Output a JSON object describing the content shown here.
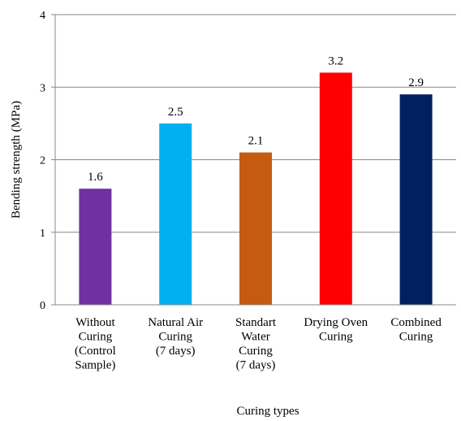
{
  "chart_data": {
    "type": "bar",
    "title": "",
    "xlabel": "Curing types",
    "ylabel": "Bending strength (MPa)",
    "ylim": [
      0,
      4
    ],
    "yticks": [
      0,
      1,
      2,
      3,
      4
    ],
    "grid": true,
    "legend": "none",
    "data_labels": true,
    "categories": [
      [
        "Without",
        "Curing",
        "(Control",
        "Sample)"
      ],
      [
        "Natural Air",
        "Curing",
        "(7 days)"
      ],
      [
        "Standart",
        "Water",
        "Curing",
        "(7 days)"
      ],
      [
        "Drying Oven",
        "Curing"
      ],
      [
        "Combined",
        "Curing"
      ]
    ],
    "values": [
      1.6,
      2.5,
      2.1,
      3.2,
      2.9
    ],
    "value_labels": [
      "1.6",
      "2.5",
      "2.1",
      "3.2",
      "2.9"
    ],
    "colors": [
      "#7030A0",
      "#00B0F0",
      "#C55A11",
      "#FF0000",
      "#002060"
    ]
  }
}
